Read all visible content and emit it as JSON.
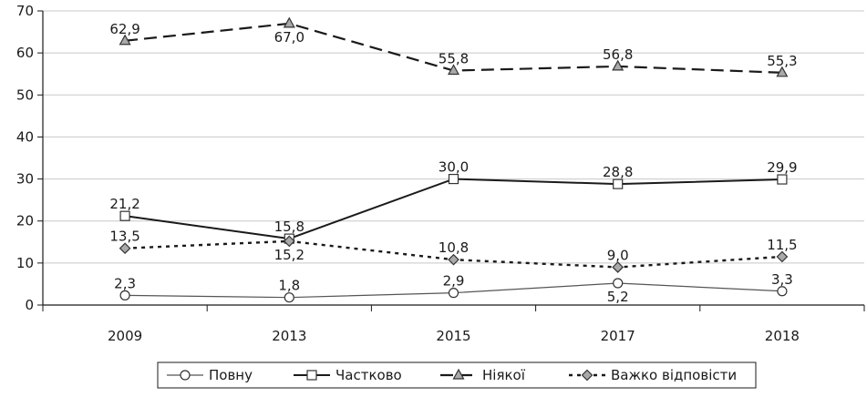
{
  "chart_data": {
    "type": "line",
    "title": "",
    "xlabel": "",
    "ylabel": "",
    "ylim": [
      0,
      70
    ],
    "yticks": [
      0,
      10,
      20,
      30,
      40,
      50,
      60,
      70
    ],
    "grid": "horizontal",
    "legend_position": "bottom",
    "categories": [
      "2009",
      "2013",
      "2015",
      "2017",
      "2018"
    ],
    "series": [
      {
        "name": "Повну",
        "values": [
          2.3,
          1.8,
          2.9,
          5.2,
          3.3
        ],
        "labels": [
          "2,3",
          "1,8",
          "2,9",
          "5,2",
          "3,3"
        ],
        "label_side": [
          "above",
          "above",
          "above",
          "below",
          "above"
        ],
        "marker": "circle",
        "line_style": "solid-thin",
        "color": "#555555"
      },
      {
        "name": "Частково",
        "values": [
          21.2,
          15.8,
          30.0,
          28.8,
          29.9
        ],
        "labels": [
          "21,2",
          "15,8",
          "30,0",
          "28,8",
          "29,9"
        ],
        "label_side": [
          "above",
          "above",
          "above",
          "above",
          "above"
        ],
        "marker": "square",
        "line_style": "solid",
        "color": "#1a1a1a"
      },
      {
        "name": "Ніякої",
        "values": [
          62.9,
          67.0,
          55.8,
          56.8,
          55.3
        ],
        "labels": [
          "62,9",
          "67,0",
          "55,8",
          "56,8",
          "55,3"
        ],
        "label_side": [
          "above",
          "below",
          "above",
          "above",
          "above"
        ],
        "marker": "triangle",
        "line_style": "dashed",
        "color": "#1a1a1a"
      },
      {
        "name": "Важко відповісти",
        "values": [
          13.5,
          15.2,
          10.8,
          9.0,
          11.5
        ],
        "labels": [
          "13,5",
          "15,2",
          "10,8",
          "9,0",
          "11,5"
        ],
        "label_side": [
          "above",
          "below",
          "above",
          "above",
          "above"
        ],
        "marker": "diamond",
        "line_style": "dotted",
        "color": "#1a1a1a"
      }
    ]
  }
}
